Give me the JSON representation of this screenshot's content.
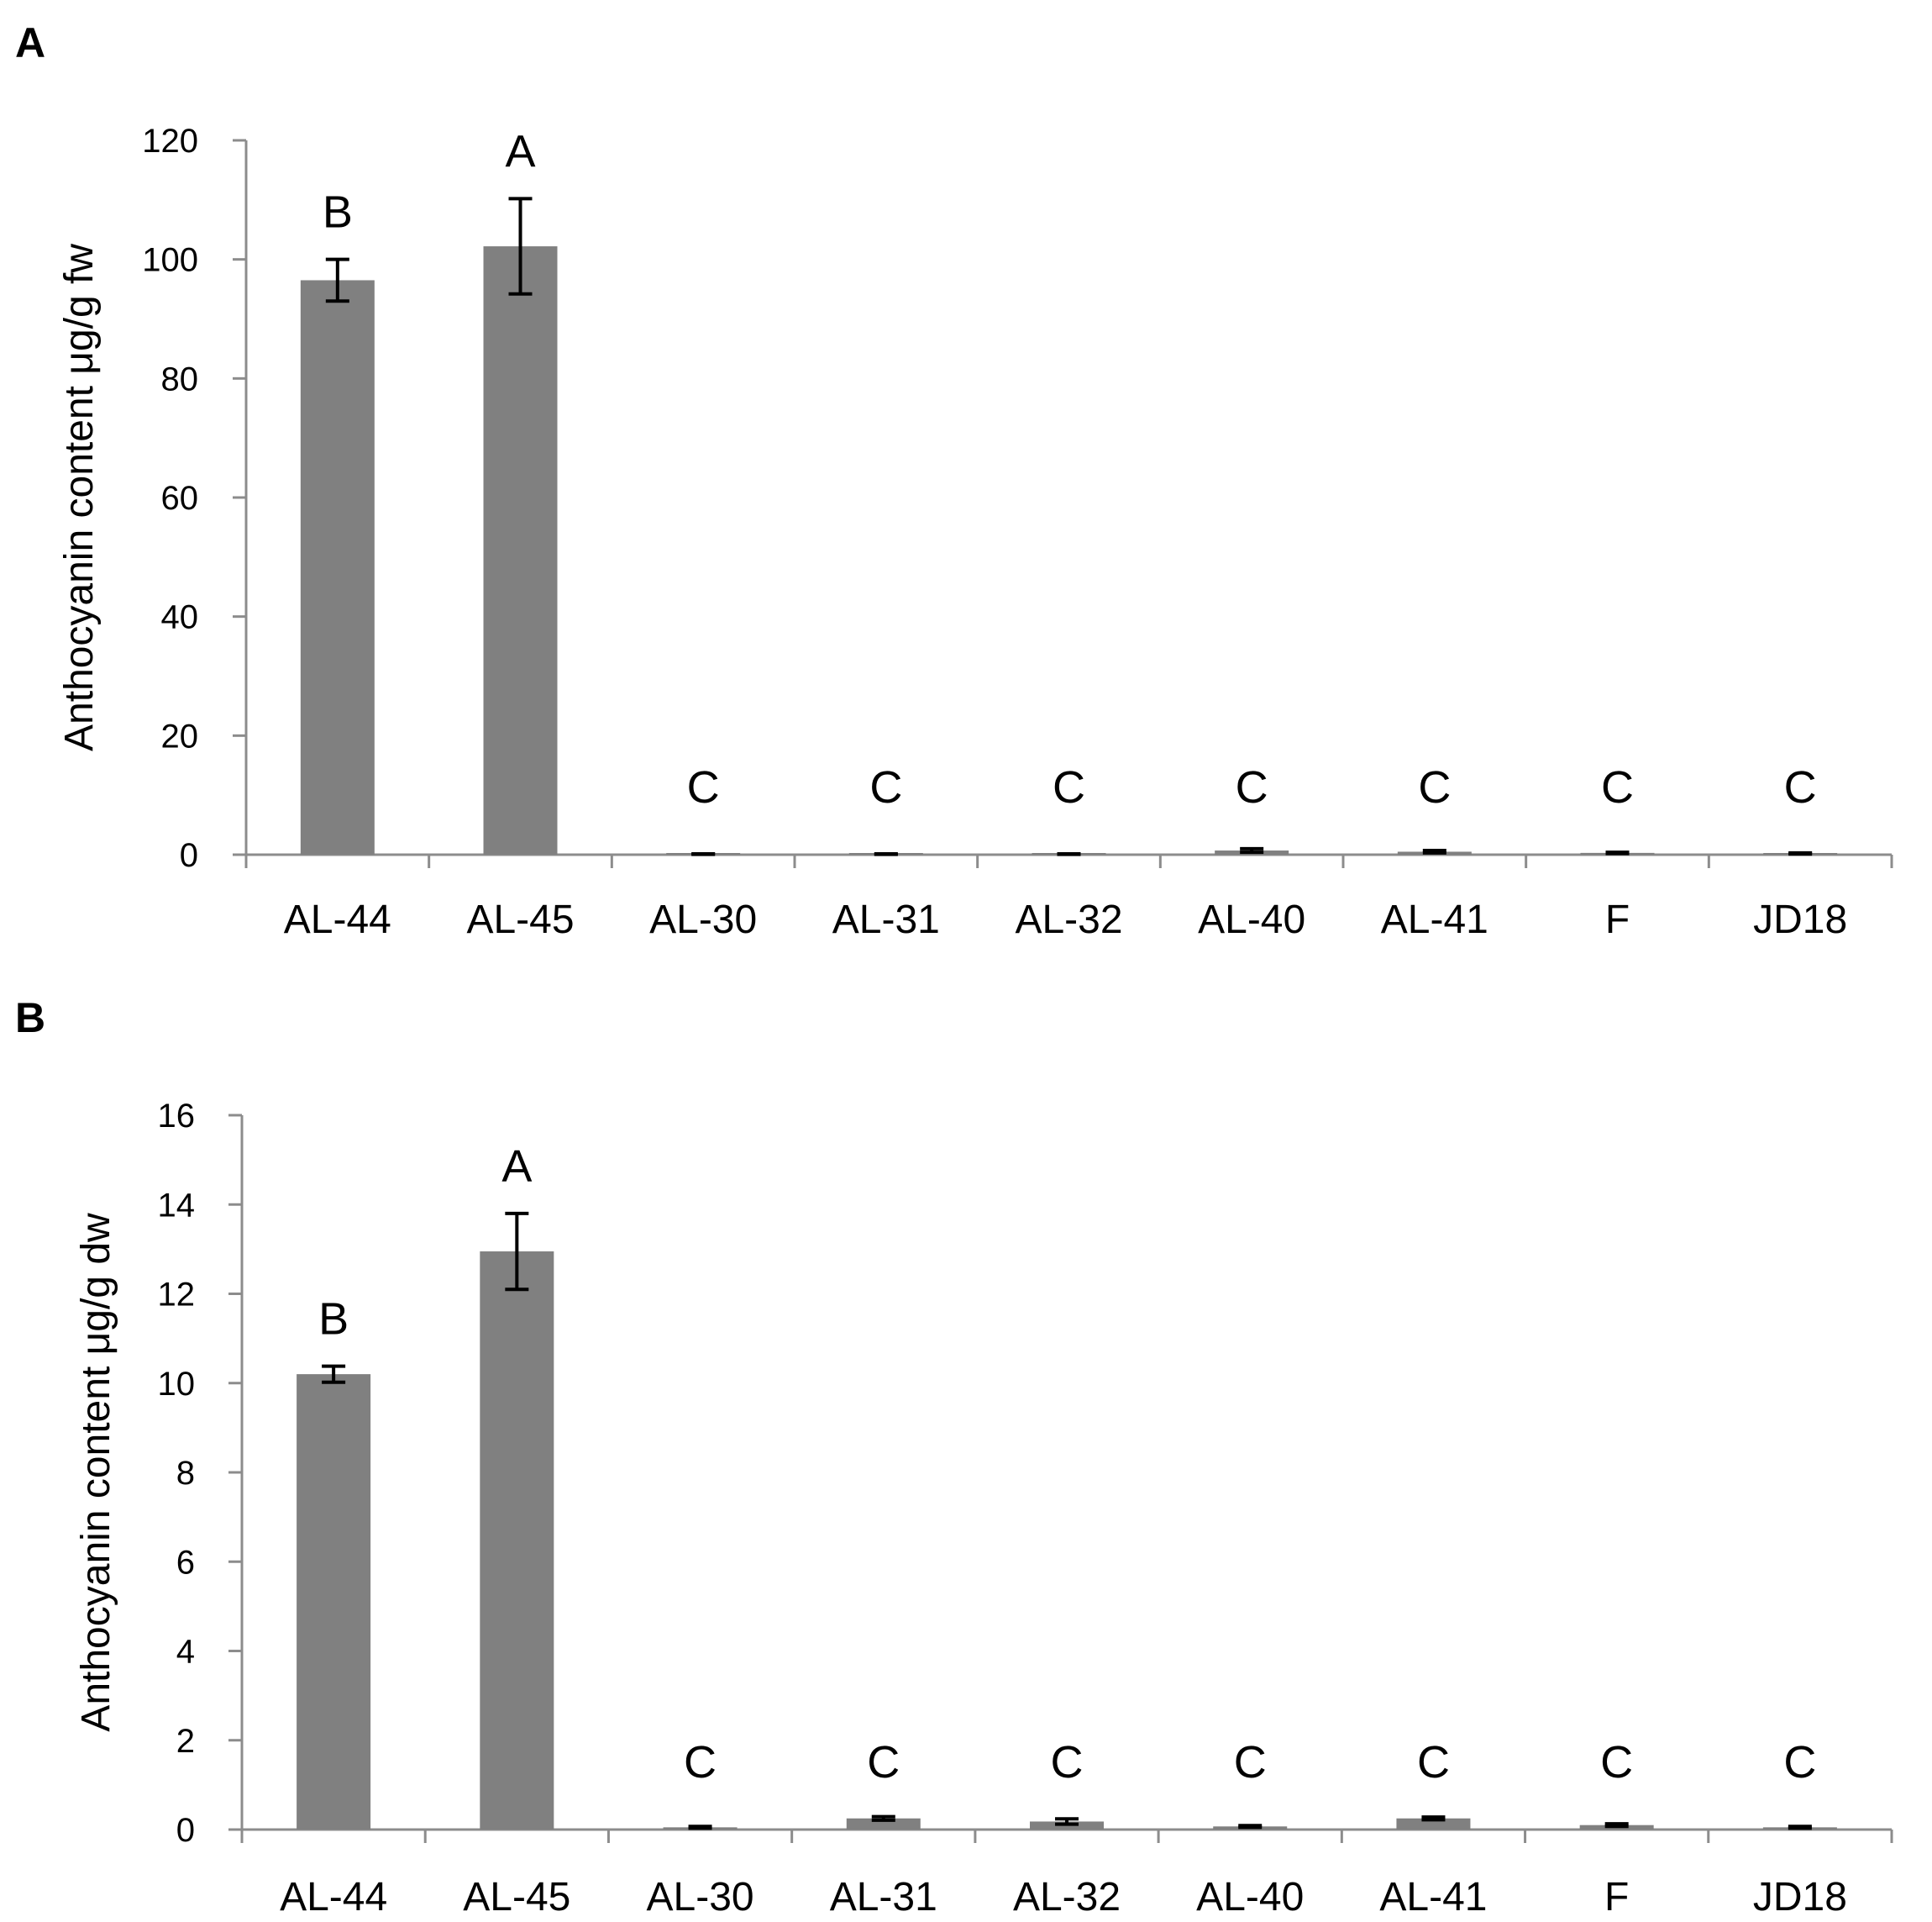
{
  "chart_data": [
    {
      "type": "bar",
      "panel_label": "A",
      "categories": [
        "AL-44",
        "AL-45",
        "AL-30",
        "AL-31",
        "AL-32",
        "AL-40",
        "AL-41",
        "F",
        "JD18"
      ],
      "values": [
        96.5,
        102.2,
        0.1,
        0.1,
        0.1,
        0.7,
        0.5,
        0.3,
        0.2
      ],
      "errors": [
        3.5,
        8.0,
        0.05,
        0.05,
        0.05,
        0.3,
        0.2,
        0.1,
        0.1
      ],
      "significance": [
        "B",
        "A",
        "C",
        "C",
        "C",
        "C",
        "C",
        "C",
        "C"
      ],
      "title": "",
      "xlabel": "",
      "ylabel": "Anthocyanin content μg/g fw",
      "ylim": [
        0,
        120
      ],
      "yticks": [
        0,
        20,
        40,
        60,
        80,
        100,
        120
      ],
      "bar_color": "#808080",
      "grid": false
    },
    {
      "type": "bar",
      "panel_label": "B",
      "categories": [
        "AL-44",
        "AL-45",
        "AL-30",
        "AL-31",
        "AL-32",
        "AL-40",
        "AL-41",
        "F",
        "JD18"
      ],
      "values": [
        10.2,
        12.95,
        0.05,
        0.25,
        0.18,
        0.07,
        0.25,
        0.1,
        0.05
      ],
      "errors": [
        0.18,
        0.85,
        0.02,
        0.04,
        0.06,
        0.02,
        0.03,
        0.03,
        0.02
      ],
      "significance": [
        "B",
        "A",
        "C",
        "C",
        "C",
        "C",
        "C",
        "C",
        "C"
      ],
      "title": "",
      "xlabel": "",
      "ylabel": "Anthocyanin content μg/g dw",
      "ylim": [
        0,
        16
      ],
      "yticks": [
        0,
        2,
        4,
        6,
        8,
        10,
        12,
        14,
        16
      ],
      "bar_color": "#808080",
      "grid": false
    }
  ]
}
